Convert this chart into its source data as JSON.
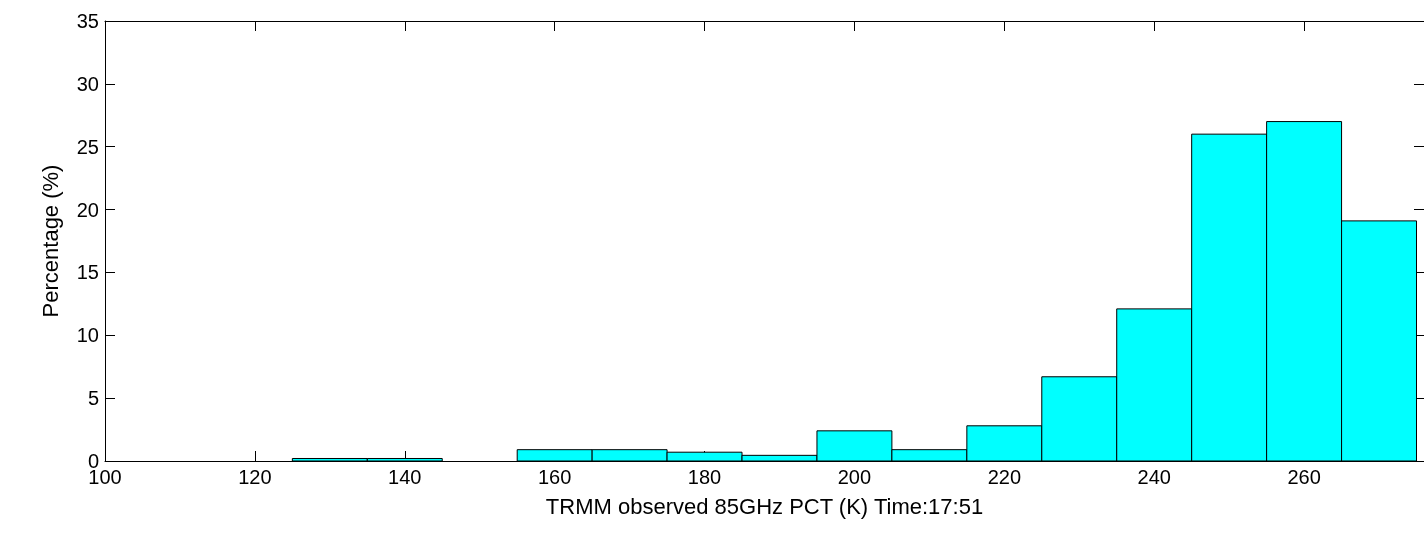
{
  "chart_data": {
    "type": "histogram",
    "xlabel": "TRMM observed 85GHz PCT (K) Time:17:51",
    "ylabel": "Percentage (%)",
    "bins": [
      125,
      135,
      145,
      155,
      165,
      175,
      185,
      195,
      205,
      215,
      225,
      235,
      245,
      255,
      265,
      275
    ],
    "values": [
      0.2,
      0.2,
      0,
      0.9,
      0.9,
      0.7,
      0.45,
      2.4,
      0.9,
      2.8,
      6.7,
      12.1,
      26,
      27,
      19.1
    ],
    "color": "#00ffff",
    "xlim": [
      100,
      276
    ],
    "xticks": [
      100,
      120,
      140,
      160,
      180,
      200,
      220,
      240,
      260
    ],
    "ylim": [
      0,
      35
    ],
    "yticks": [
      0,
      5,
      10,
      15,
      20,
      25,
      30,
      35
    ],
    "grid": false
  }
}
